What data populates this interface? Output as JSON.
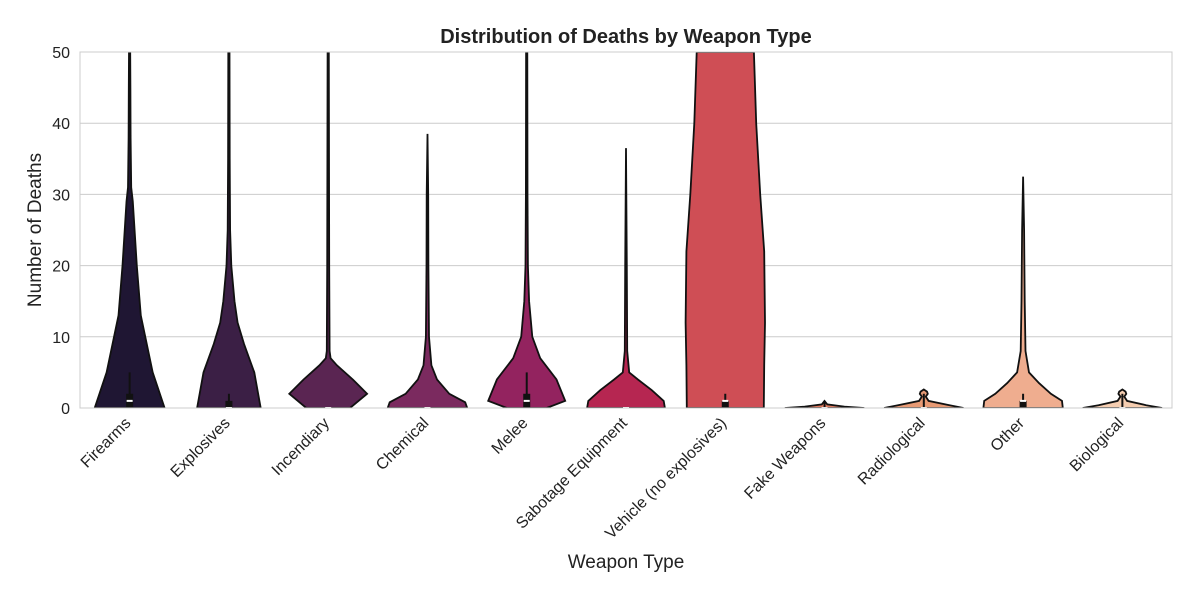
{
  "chart_data": {
    "type": "violin",
    "title": "Distribution of Deaths by Weapon Type",
    "xlabel": "Weapon Type",
    "ylabel": "Number of Deaths",
    "ylim": [
      0,
      50
    ],
    "yticks": [
      0,
      10,
      20,
      30,
      40,
      50
    ],
    "grid": true,
    "categories": [
      "Firearms",
      "Explosives",
      "Incendiary",
      "Chemical",
      "Melee",
      "Sabotage Equipment",
      "Vehicle (no explosives)",
      "Fake Weapons",
      "Radiological",
      "Other",
      "Biological"
    ],
    "colors": [
      "#1f1633",
      "#3b1f45",
      "#5a2552",
      "#7b2a5f",
      "#93235f",
      "#b62651",
      "#cf4e55",
      "#e07a5f",
      "#e89a74",
      "#efad8f",
      "#f5cdb0"
    ],
    "series": [
      {
        "category": "Firearms",
        "max_shown": 50,
        "profile": [
          [
            0,
            0.88
          ],
          [
            5,
            0.58
          ],
          [
            13,
            0.28
          ],
          [
            20,
            0.18
          ],
          [
            29,
            0.08
          ],
          [
            31,
            0.04
          ],
          [
            38,
            0.025
          ],
          [
            45,
            0.02
          ],
          [
            50,
            0.015
          ]
        ],
        "median": 1,
        "q1": 0,
        "q3": 2,
        "whisker_high": 5
      },
      {
        "category": "Explosives",
        "max_shown": 50,
        "profile": [
          [
            0,
            0.8
          ],
          [
            5,
            0.64
          ],
          [
            9,
            0.38
          ],
          [
            12,
            0.22
          ],
          [
            15,
            0.14
          ],
          [
            20,
            0.06
          ],
          [
            25,
            0.03
          ],
          [
            35,
            0.02
          ],
          [
            50,
            0.015
          ]
        ],
        "median": 0,
        "q1": 0,
        "q3": 1,
        "whisker_high": 2
      },
      {
        "category": "Incendiary",
        "max_shown": 50,
        "profile": [
          [
            0,
            0.55
          ],
          [
            2,
            0.98
          ],
          [
            4,
            0.62
          ],
          [
            6,
            0.22
          ],
          [
            7,
            0.06
          ],
          [
            8,
            0.035
          ],
          [
            20,
            0.025
          ],
          [
            50,
            0.015
          ]
        ],
        "median": 0,
        "q1": 0,
        "q3": 0,
        "whisker_high": 0
      },
      {
        "category": "Chemical",
        "max_shown": 38.5,
        "profile": [
          [
            0,
            1.0
          ],
          [
            0.8,
            0.95
          ],
          [
            2,
            0.55
          ],
          [
            4,
            0.24
          ],
          [
            6,
            0.1
          ],
          [
            10,
            0.04
          ],
          [
            20,
            0.025
          ],
          [
            30,
            0.02
          ],
          [
            38.5,
            0.0
          ]
        ],
        "median": 0,
        "q1": 0,
        "q3": 0,
        "whisker_high": 0
      },
      {
        "category": "Melee",
        "max_shown": 50,
        "profile": [
          [
            0,
            0.5
          ],
          [
            1,
            0.97
          ],
          [
            4,
            0.75
          ],
          [
            7,
            0.34
          ],
          [
            10,
            0.14
          ],
          [
            15,
            0.06
          ],
          [
            20,
            0.03
          ],
          [
            30,
            0.02
          ],
          [
            50,
            0.015
          ]
        ],
        "median": 1,
        "q1": 0,
        "q3": 2,
        "whisker_high": 5
      },
      {
        "category": "Sabotage Equipment",
        "max_shown": 36.5,
        "profile": [
          [
            0,
            0.98
          ],
          [
            1,
            0.95
          ],
          [
            2.5,
            0.65
          ],
          [
            4,
            0.3
          ],
          [
            5,
            0.08
          ],
          [
            8,
            0.03
          ],
          [
            20,
            0.02
          ],
          [
            36.5,
            0.0
          ]
        ],
        "median": 0,
        "q1": 0,
        "q3": 0,
        "whisker_high": 0
      },
      {
        "category": "Vehicle (no explosives)",
        "max_shown": 50,
        "profile": [
          [
            0,
            0.97
          ],
          [
            6,
            0.98
          ],
          [
            12,
            1.0
          ],
          [
            22,
            0.98
          ],
          [
            30,
            0.88
          ],
          [
            40,
            0.78
          ],
          [
            50,
            0.72
          ]
        ],
        "median": 1,
        "q1": 0,
        "q3": 1,
        "whisker_high": 2
      },
      {
        "category": "Fake Weapons",
        "max_shown": 1,
        "profile": [
          [
            0,
            1.0
          ],
          [
            0.2,
            0.5
          ],
          [
            0.5,
            0.07
          ],
          [
            1,
            0.0
          ]
        ],
        "median": 0,
        "q1": 0,
        "q3": 0,
        "whisker_high": 1
      },
      {
        "category": "Radiological",
        "max_shown": 2.6,
        "profile": [
          [
            0,
            1.0
          ],
          [
            0.4,
            0.65
          ],
          [
            1.0,
            0.12
          ],
          [
            1.6,
            0.05
          ],
          [
            2.0,
            0.1
          ],
          [
            2.3,
            0.08
          ],
          [
            2.6,
            0.0
          ]
        ],
        "median": 0,
        "q1": 0,
        "q3": 0,
        "whisker_high": 2
      },
      {
        "category": "Other",
        "max_shown": 32.5,
        "profile": [
          [
            0,
            1.0
          ],
          [
            1,
            0.98
          ],
          [
            2,
            0.7
          ],
          [
            3.5,
            0.4
          ],
          [
            5,
            0.15
          ],
          [
            8,
            0.06
          ],
          [
            15,
            0.04
          ],
          [
            25,
            0.025
          ],
          [
            32.5,
            0.0
          ]
        ],
        "median": 1,
        "q1": 0,
        "q3": 1,
        "whisker_high": 2
      },
      {
        "category": "Biological",
        "max_shown": 2.6,
        "profile": [
          [
            0,
            1.0
          ],
          [
            0.4,
            0.6
          ],
          [
            1.0,
            0.12
          ],
          [
            1.6,
            0.05
          ],
          [
            2.0,
            0.1
          ],
          [
            2.3,
            0.08
          ],
          [
            2.6,
            0.0
          ]
        ],
        "median": 0,
        "q1": 0,
        "q3": 0,
        "whisker_high": 2
      }
    ]
  }
}
